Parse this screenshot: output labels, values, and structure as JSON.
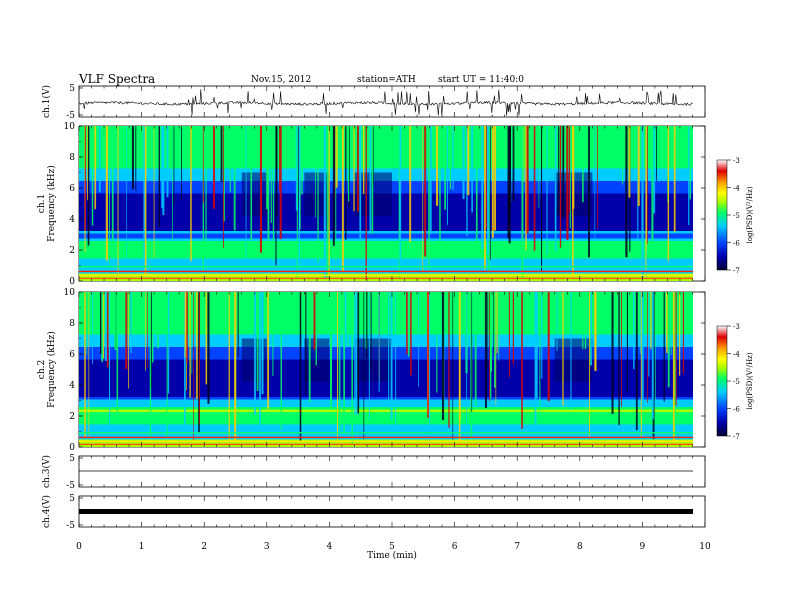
{
  "header": {
    "title": "VLF  Spectra",
    "date": "Nov.15, 2012",
    "station": "station=ATH",
    "start": "start  UT  =   11:40:0"
  },
  "chart_data": [
    {
      "type": "line",
      "id": "ch1",
      "ylabel": "ch.1(V)",
      "ylim": [
        -5,
        5
      ],
      "yticks": [
        "5",
        "-5"
      ],
      "x_range": [
        0,
        10
      ],
      "data_end_min": 9.8,
      "description_level": "noisy waveform centred near -0.5 V with frequent spikes"
    },
    {
      "type": "heatmap",
      "id": "ch1-spectrogram",
      "ylabel": "ch.1\nFrequency (kHz)",
      "ylim": [
        0,
        10
      ],
      "yticks": [
        "0",
        "2",
        "4",
        "6",
        "8",
        "10"
      ],
      "colorbar": {
        "label": "log(PSD)(V²/Hz)",
        "range": [
          -7,
          -3
        ],
        "ticks": [
          "-3",
          "-4",
          "-5",
          "-6",
          "-7"
        ]
      }
    },
    {
      "type": "heatmap",
      "id": "ch2-spectrogram",
      "ylabel": "ch.2\nFrequency (kHz)",
      "ylim": [
        0,
        10
      ],
      "yticks": [
        "0",
        "2",
        "4",
        "6",
        "8",
        "10"
      ],
      "colorbar": {
        "label": "log(PSD)(V²/Hz)",
        "range": [
          -7,
          -3
        ],
        "ticks": [
          "-3",
          "-4",
          "-5",
          "-6",
          "-7"
        ]
      }
    },
    {
      "type": "line",
      "id": "ch3",
      "ylabel": "ch.3(V)",
      "ylim": [
        -5,
        5
      ],
      "yticks": [
        "5",
        "-5"
      ],
      "level": 0
    },
    {
      "type": "line",
      "id": "ch4",
      "ylabel": "ch.4(V)",
      "ylim": [
        -5,
        5
      ],
      "yticks": [
        "5",
        "-5"
      ],
      "level": 0
    }
  ],
  "xaxis": {
    "label": "Time  (min)",
    "range": [
      0,
      10
    ],
    "ticks": [
      "0",
      "1",
      "2",
      "3",
      "4",
      "5",
      "6",
      "7",
      "8",
      "9",
      "10"
    ]
  },
  "colors": {
    "colormap": [
      "#000033",
      "#0000aa",
      "#0044ff",
      "#00ccff",
      "#00ff66",
      "#aaff00",
      "#ffff00",
      "#ff9900",
      "#dd0000",
      "#ffffff"
    ]
  }
}
